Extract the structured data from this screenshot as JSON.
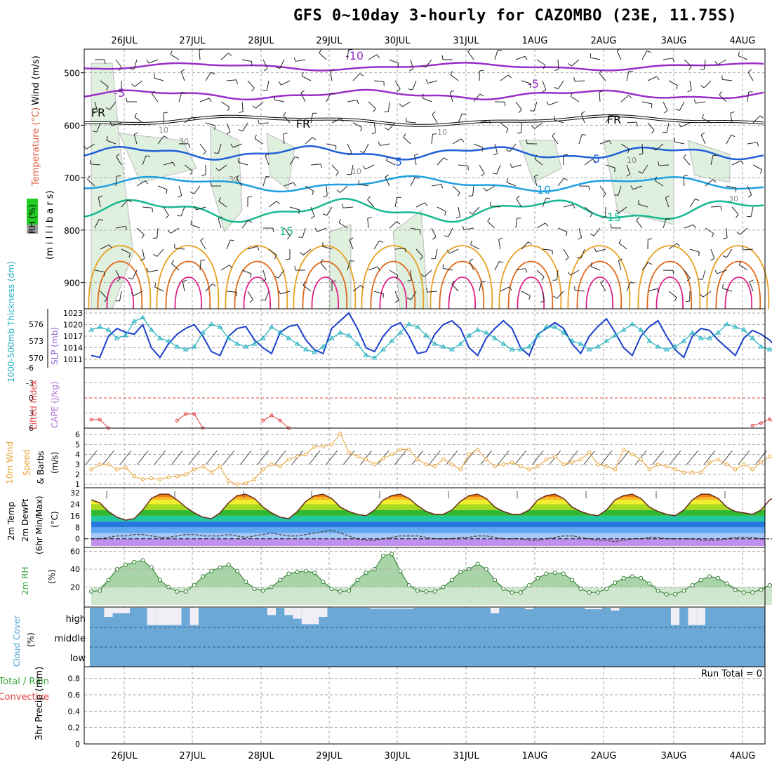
{
  "title": "GFS 0~10day 3-hourly for CAZOMBO (23E, 11.75S)",
  "date_labels": [
    "26JUL",
    "27JUL",
    "28JUL",
    "29JUL",
    "30JUL",
    "31JUL",
    "1AUG",
    "2AUG",
    "3AUG",
    "4AUG"
  ],
  "colors": {
    "temp_purple": "#9a2fc8",
    "temp_blue": "#1f5fd8",
    "temp_lightblue": "#1ea0e0",
    "temp_green": "#16b890",
    "temp_orange": "#e8a020",
    "temp_darkorange": "#e06818",
    "temp_magenta": "#e0208a",
    "rh_fill": "#dff0df",
    "slp": "#1a3fcc",
    "thickness": "#22b0c0",
    "li": "#e04040",
    "wind10": "#e8a030",
    "cloud": "#6ba8d6",
    "rh2m": "#3aa83a"
  },
  "panels": {
    "upper": {
      "ylabel_wind": "Wind (m/s)",
      "ylabel_temp": "Temperature (°C)",
      "ylabel_rh": "RH (%)",
      "ylabel_mb": "(m i l l i b a r s)",
      "ticks": [
        "500",
        "600",
        "700",
        "800",
        "900"
      ],
      "contour_labels": [
        "-10",
        "-5",
        "-5",
        "FR",
        "FR",
        "FR",
        "5",
        "5",
        "10",
        "15",
        "15",
        "10",
        "10",
        "30",
        "30",
        "10",
        "10",
        "30"
      ]
    },
    "slp": {
      "ylabel_thick": "1000-500mb Thickness (dm)",
      "ylabel_slp": "SLP (mb)",
      "left_ticks": [
        "576",
        "573",
        "570"
      ],
      "right_ticks": [
        "1023",
        "1020",
        "1017",
        "1014",
        "1011"
      ]
    },
    "li": {
      "ylabel_li": "Lifted Index",
      "ylabel_cape": "CAPE (J/kg)",
      "ticks": [
        "-6",
        "-3",
        "0",
        "3",
        "6"
      ]
    },
    "wind10": {
      "ylabel1": "10m Wind",
      "ylabel2": "Speed",
      "ylabel3": "(m/s)",
      "ylabel4": "& Barbs",
      "ticks": [
        "6",
        "5",
        "4",
        "3",
        "2",
        "1"
      ]
    },
    "temp2m": {
      "ylabel1": "2m Temp",
      "ylabel2": "2m DewPt",
      "ylabel3": "(6hr Min/Max)",
      "ylabel4": "(°C)",
      "ticks": [
        "32",
        "24",
        "16",
        "8",
        "0"
      ]
    },
    "rh2m": {
      "ylabel1": "2m RH",
      "ylabel2": "(%)",
      "ticks": [
        "60",
        "40",
        "20"
      ]
    },
    "cloud": {
      "ylabel1": "Cloud Cover",
      "ylabel2": "(%)",
      "rows": [
        "high",
        "middle",
        "low"
      ]
    },
    "precip": {
      "ylabel1": "Total / Rain",
      "ylabel2": "Convective",
      "ylabel3": "3hr Precip (mm)",
      "ticks": [
        "0.8",
        "0.6",
        "0.4",
        "0.2",
        "0"
      ],
      "run_total": "Run Total = 0"
    }
  },
  "chart_data": [
    {
      "type": "line",
      "title": "SLP (mb)",
      "x_labels_every_3h_from": "25JUL 15Z",
      "series": [
        {
          "name": "SLP (mb)",
          "values": [
            1012,
            1011.5,
            1017,
            1019,
            1018,
            1017.5,
            1020,
            1014,
            1011.5,
            1015,
            1017.5,
            1019,
            1020,
            1017,
            1013,
            1012,
            1017,
            1019,
            1019.5,
            1016,
            1014,
            1012.5,
            1018,
            1019.5,
            1020,
            1016,
            1013.5,
            1012.5,
            1019,
            1021,
            1023,
            1019,
            1014,
            1013,
            1017,
            1019.5,
            1020.5,
            1017,
            1012.5,
            1013,
            1017.5,
            1020,
            1021,
            1019,
            1014,
            1012,
            1016.5,
            1019,
            1021,
            1019,
            1014,
            1012,
            1017.5,
            1019,
            1020.5,
            1019,
            1015,
            1012.5,
            1017,
            1019.5,
            1021.5,
            1018,
            1014,
            1012,
            1017,
            1019.5,
            1021,
            1017,
            1013.5,
            1011.5,
            1017,
            1019,
            1018.5,
            1016,
            1014,
            1012,
            1016.5,
            1018.5,
            1017.5,
            1016,
            1013.5,
            1012.5,
            1017,
            1019,
            1019.5,
            1017,
            1014,
            1013,
            1016.5,
            1018,
            1019,
            1017,
            1015,
            1013,
            1017,
            1020,
            1021
          ]
        },
        {
          "name": "1000-500mb Thickness (dm)",
          "values": [
            575,
            575.5,
            575,
            573.5,
            574,
            576.5,
            577.2,
            575,
            573.5,
            573,
            572,
            571.5,
            572,
            574.5,
            576,
            575.5,
            573.5,
            572.5,
            572,
            572.5,
            573.5,
            575.5,
            574.5,
            573.5,
            572.5,
            571.5,
            571,
            572,
            573.5,
            574.5,
            574,
            572.5,
            570.5,
            570,
            571.5,
            573,
            574.5,
            576,
            575.5,
            574,
            572.5,
            572,
            571.5,
            572.5,
            574,
            575,
            574.5,
            573.5,
            572.5,
            571.5,
            571.5,
            572,
            574,
            575.5,
            575.5,
            574.5,
            573,
            572.5,
            571.5,
            572,
            573,
            574,
            575,
            576,
            575,
            573,
            572,
            571.5,
            572,
            573,
            574.5,
            573.5,
            573.5,
            574.5,
            576,
            575.5,
            575,
            573.5,
            572,
            571.5,
            572,
            573.5,
            575,
            576.5,
            575.5,
            573.5,
            572.5,
            571.5,
            572,
            573.5,
            574.5,
            575.5,
            575.5,
            574,
            572.5,
            571.5,
            570.5,
            571.5
          ]
        }
      ],
      "ylim_slp": [
        1011,
        1023
      ],
      "ylim_thickness": [
        570,
        576
      ]
    },
    {
      "type": "line",
      "title": "Lifted Index",
      "series": [
        {
          "name": "Lifted Index",
          "values": [
            4.3,
            4.3,
            6.5,
            null,
            null,
            null,
            null,
            null,
            null,
            null,
            4.5,
            3.2,
            3.2,
            6.5,
            null,
            null,
            null,
            null,
            null,
            null,
            4.5,
            3.5,
            4.5,
            6.5,
            null,
            null,
            null,
            null,
            null,
            null,
            null,
            null,
            null,
            null,
            null,
            null,
            null,
            null,
            null,
            null,
            null,
            null,
            null,
            null,
            null,
            null,
            null,
            null,
            null,
            null,
            null,
            null,
            null,
            null,
            null,
            null,
            null,
            null,
            null,
            null,
            null,
            null,
            null,
            null,
            null,
            null,
            null,
            null,
            null,
            null,
            null,
            null,
            null,
            null,
            null,
            null,
            null,
            5.5,
            5,
            4.2,
            6.5,
            null,
            null,
            null,
            null,
            null,
            null,
            6,
            4.5,
            3.8,
            4.5,
            6.5
          ]
        }
      ],
      "ylim": [
        -6,
        6
      ]
    },
    {
      "type": "line",
      "title": "10m Wind Speed (m/s)",
      "series": [
        {
          "name": "10m Wind Speed",
          "values": [
            2.5,
            3,
            3,
            2.5,
            2.7,
            1.8,
            1.5,
            1.6,
            1.5,
            1.7,
            1.8,
            2,
            2.5,
            2.8,
            2.2,
            2.8,
            1.3,
            1,
            1.1,
            1.5,
            2.5,
            3,
            2.8,
            3.5,
            3.8,
            4,
            4.8,
            4.8,
            5,
            6.1,
            4.2,
            3.8,
            3.5,
            3,
            3.6,
            4,
            4.5,
            4.5,
            3.5,
            3,
            2.8,
            3.5,
            3,
            2.5,
            4,
            4.5,
            3.5,
            2.8,
            3,
            3.2,
            2.8,
            2.5,
            2.8,
            3.5,
            3.8,
            3,
            3.2,
            3.5,
            4.2,
            3,
            2.8,
            2.5,
            4.5,
            4,
            3.5,
            2.5,
            3,
            2.8,
            2.5,
            2.2,
            2.2,
            2.2,
            3.2,
            3.5,
            3,
            2.5,
            3,
            2.5,
            3.2,
            3.8,
            3.5,
            3,
            2.7,
            2.5,
            2.3,
            2.5,
            3,
            3.5,
            3,
            2.5,
            2.8,
            3.2,
            3.5,
            3.8,
            3.2,
            3.5,
            3.5
          ]
        }
      ],
      "ylim": [
        1,
        6.5
      ]
    },
    {
      "type": "area",
      "title": "2m Temp / 2m DewPt",
      "series": [
        {
          "name": "2m Temp",
          "values": [
            27,
            25,
            19,
            15,
            13,
            14,
            20,
            28,
            31,
            31,
            27,
            22,
            18,
            15,
            14,
            18,
            25,
            30,
            31,
            28,
            22,
            18,
            15,
            14,
            19,
            26,
            30,
            31,
            28,
            22,
            19,
            17,
            16,
            20,
            27,
            30,
            31,
            28,
            23,
            19,
            17,
            17,
            20,
            26,
            30,
            31,
            28,
            22,
            19,
            17,
            17,
            20,
            27,
            30,
            31,
            28,
            22,
            19,
            17,
            16,
            20,
            27,
            30,
            31,
            28,
            22,
            19,
            17,
            16,
            20,
            27,
            31,
            31,
            28,
            22,
            19,
            18,
            17,
            20,
            27,
            30,
            31,
            27,
            22,
            20,
            19,
            17,
            22,
            28,
            31,
            31,
            26,
            22,
            19,
            17,
            18,
            17
          ]
        },
        {
          "name": "2m DewPt",
          "values": [
            0,
            0,
            1,
            2,
            2,
            3,
            3,
            2,
            1,
            1,
            2,
            3,
            3,
            2,
            2,
            2,
            3,
            2,
            1,
            2,
            3,
            4,
            3,
            2,
            2,
            3,
            4,
            5,
            6,
            4,
            2,
            0,
            -1,
            -1,
            0,
            1,
            2,
            2,
            2,
            1,
            0,
            0,
            0,
            1,
            1,
            2,
            2,
            1,
            0,
            0,
            0,
            -1,
            -1,
            0,
            1,
            2,
            2,
            1,
            0,
            -1,
            -1,
            -2,
            -1,
            0,
            0,
            1,
            1,
            0,
            0,
            0,
            0,
            -1,
            -1,
            -1,
            0,
            1,
            1,
            1,
            0,
            0,
            0,
            -1,
            0,
            1,
            1,
            0,
            -1,
            -1,
            0,
            0,
            0,
            -1,
            0,
            1,
            1,
            0,
            1
          ]
        }
      ],
      "ylim": [
        -5,
        33
      ]
    },
    {
      "type": "area",
      "title": "2m RH (%)",
      "series": [
        {
          "name": "2m RH",
          "values": [
            15,
            16,
            28,
            40,
            45,
            48,
            50,
            42,
            28,
            20,
            15,
            15,
            22,
            32,
            38,
            42,
            45,
            38,
            26,
            18,
            16,
            20,
            28,
            35,
            37,
            38,
            36,
            26,
            18,
            15,
            16,
            28,
            36,
            40,
            55,
            57,
            38,
            22,
            16,
            15,
            15,
            20,
            28,
            37,
            40,
            46,
            40,
            28,
            18,
            14,
            14,
            22,
            30,
            35,
            36,
            35,
            28,
            18,
            14,
            14,
            18,
            25,
            30,
            32,
            30,
            24,
            16,
            12,
            12,
            16,
            22,
            28,
            32,
            30,
            24,
            17,
            14,
            14,
            17,
            22,
            26,
            28,
            27,
            23,
            17,
            14,
            14,
            22,
            28,
            28,
            32,
            28,
            20,
            14,
            30,
            35,
            40,
            38
          ]
        }
      ],
      "ylim": [
        0,
        62
      ]
    },
    {
      "type": "bar",
      "title": "Cloud Cover (%)",
      "series": [
        {
          "name": "high cloud gaps",
          "values": [
            0,
            0,
            50,
            30,
            30,
            0,
            0,
            95,
            95,
            95,
            95,
            0,
            95,
            0,
            0,
            0,
            0,
            0,
            0,
            0,
            0,
            40,
            0,
            40,
            60,
            90,
            90,
            50,
            0,
            0,
            0,
            0,
            0,
            5,
            5,
            5,
            5,
            5,
            0,
            0,
            0,
            0,
            0,
            0,
            0,
            0,
            0,
            30,
            0,
            0,
            0,
            8,
            0,
            0,
            0,
            0,
            0,
            0,
            8,
            8,
            0,
            15,
            0,
            0,
            0,
            0,
            0,
            0,
            95,
            0,
            95,
            95,
            0,
            0,
            0,
            0,
            0,
            0,
            0,
            0,
            0,
            0,
            0,
            0,
            0,
            0,
            0,
            0,
            0,
            0,
            0,
            0,
            0,
            0,
            0,
            0,
            0
          ]
        }
      ]
    },
    {
      "type": "bar",
      "title": "3hr Precip (mm)",
      "series": [
        {
          "name": "Total / Rain",
          "values": []
        }
      ],
      "ylim": [
        0,
        0.9
      ]
    }
  ]
}
